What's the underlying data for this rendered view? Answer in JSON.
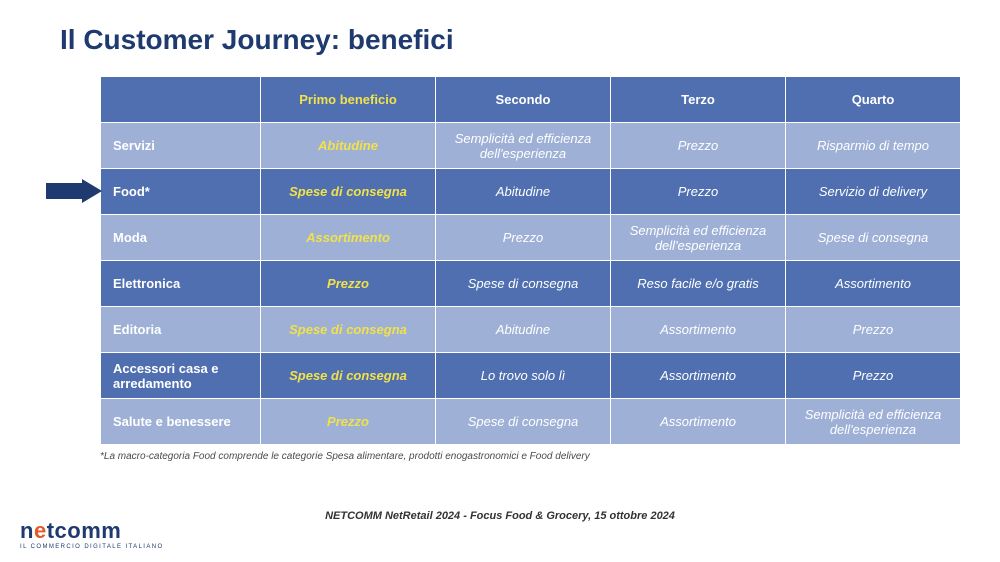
{
  "title": "Il Customer Journey: benefici",
  "colors": {
    "header_bg": "#4f6fb0",
    "row_dark_bg": "#4f6fb0",
    "row_light_bg": "#9eb0d6",
    "header_primo_text": "#f1e24a",
    "header_other_text": "#ffffff",
    "primo_text": "#f1e24a",
    "other_text_dark": "#ffffff",
    "other_text_light": "#ffffff",
    "arrow_fill": "#1e3a6e"
  },
  "table": {
    "columns": [
      "",
      "Primo beneficio",
      "Secondo",
      "Terzo",
      "Quarto"
    ],
    "highlight_row_index": 1,
    "rows": [
      {
        "category": "Servizi",
        "primo": "Abitudine",
        "secondo": "Semplicità ed efficienza dell'esperienza",
        "terzo": "Prezzo",
        "quarto": "Risparmio di tempo"
      },
      {
        "category": "Food*",
        "primo": "Spese di consegna",
        "secondo": "Abitudine",
        "terzo": "Prezzo",
        "quarto": "Servizio di delivery"
      },
      {
        "category": "Moda",
        "primo": "Assortimento",
        "secondo": "Prezzo",
        "terzo": "Semplicità ed efficienza dell'esperienza",
        "quarto": "Spese di consegna"
      },
      {
        "category": "Elettronica",
        "primo": "Prezzo",
        "secondo": "Spese di consegna",
        "terzo": "Reso facile e/o gratis",
        "quarto": "Assortimento"
      },
      {
        "category": "Editoria",
        "primo": "Spese di consegna",
        "secondo": "Abitudine",
        "terzo": "Assortimento",
        "quarto": "Prezzo"
      },
      {
        "category": "Accessori casa e arredamento",
        "primo": "Spese di consegna",
        "secondo": "Lo trovo solo lì",
        "terzo": "Assortimento",
        "quarto": "Prezzo"
      },
      {
        "category": "Salute e benessere",
        "primo": "Prezzo",
        "secondo": "Spese di consegna",
        "terzo": "Assortimento",
        "quarto": "Semplicità ed efficienza dell'esperienza"
      }
    ]
  },
  "footnote": "*La macro-categoria Food comprende le categorie Spesa alimentare, prodotti enogastronomici e Food delivery",
  "footer": {
    "event": "NETCOMM NetRetail 2024 - Focus Food & Grocery, 15 ottobre  2024",
    "logo_main_pre": "n",
    "logo_main_dot": "e",
    "logo_main_post": "tcomm",
    "logo_sub": "IL COMMERCIO DIGITALE ITALIANO"
  }
}
